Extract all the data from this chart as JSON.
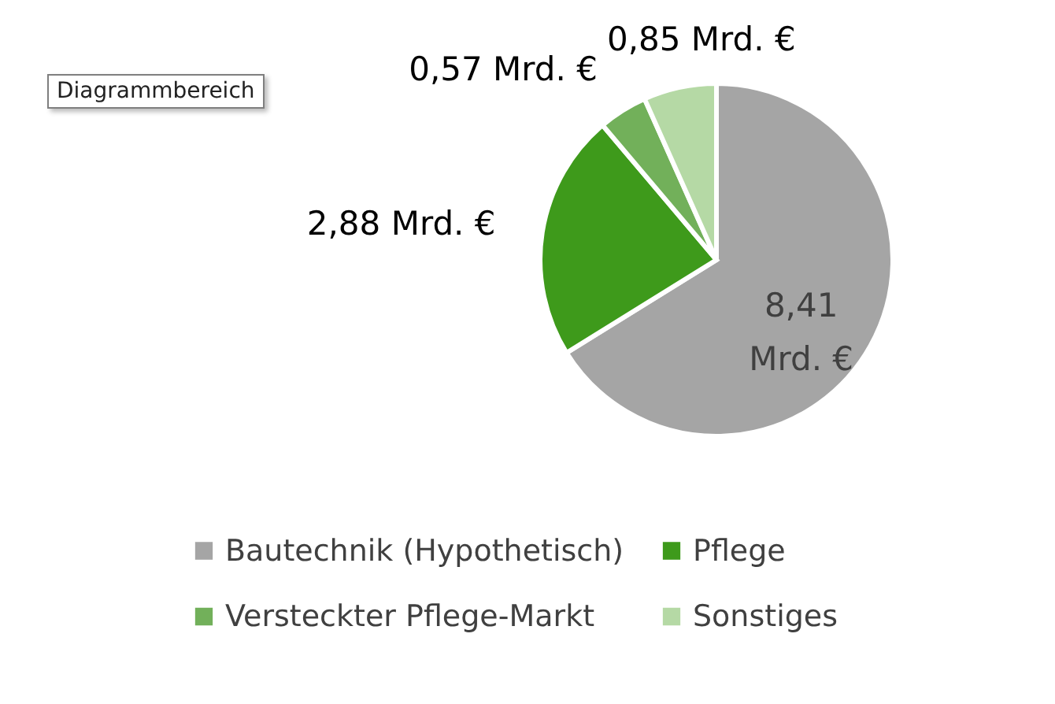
{
  "chart_data": {
    "type": "pie",
    "categories": [
      "Bautechnik (Hypothetisch)",
      "Pflege",
      "Versteckter Pflege-Markt",
      "Sonstiges"
    ],
    "values": [
      8.41,
      2.88,
      0.57,
      0.85
    ],
    "colors": [
      "#a5a5a5",
      "#3e9a1b",
      "#72b05a",
      "#b5d9a5"
    ],
    "value_labels": [
      "8,41 Mrd. €",
      "2,88 Mrd. €",
      "0,57 Mrd. €",
      "0,85 Mrd. €"
    ],
    "legend": "bottom",
    "annotations": [
      "Diagrammbereich"
    ]
  }
}
